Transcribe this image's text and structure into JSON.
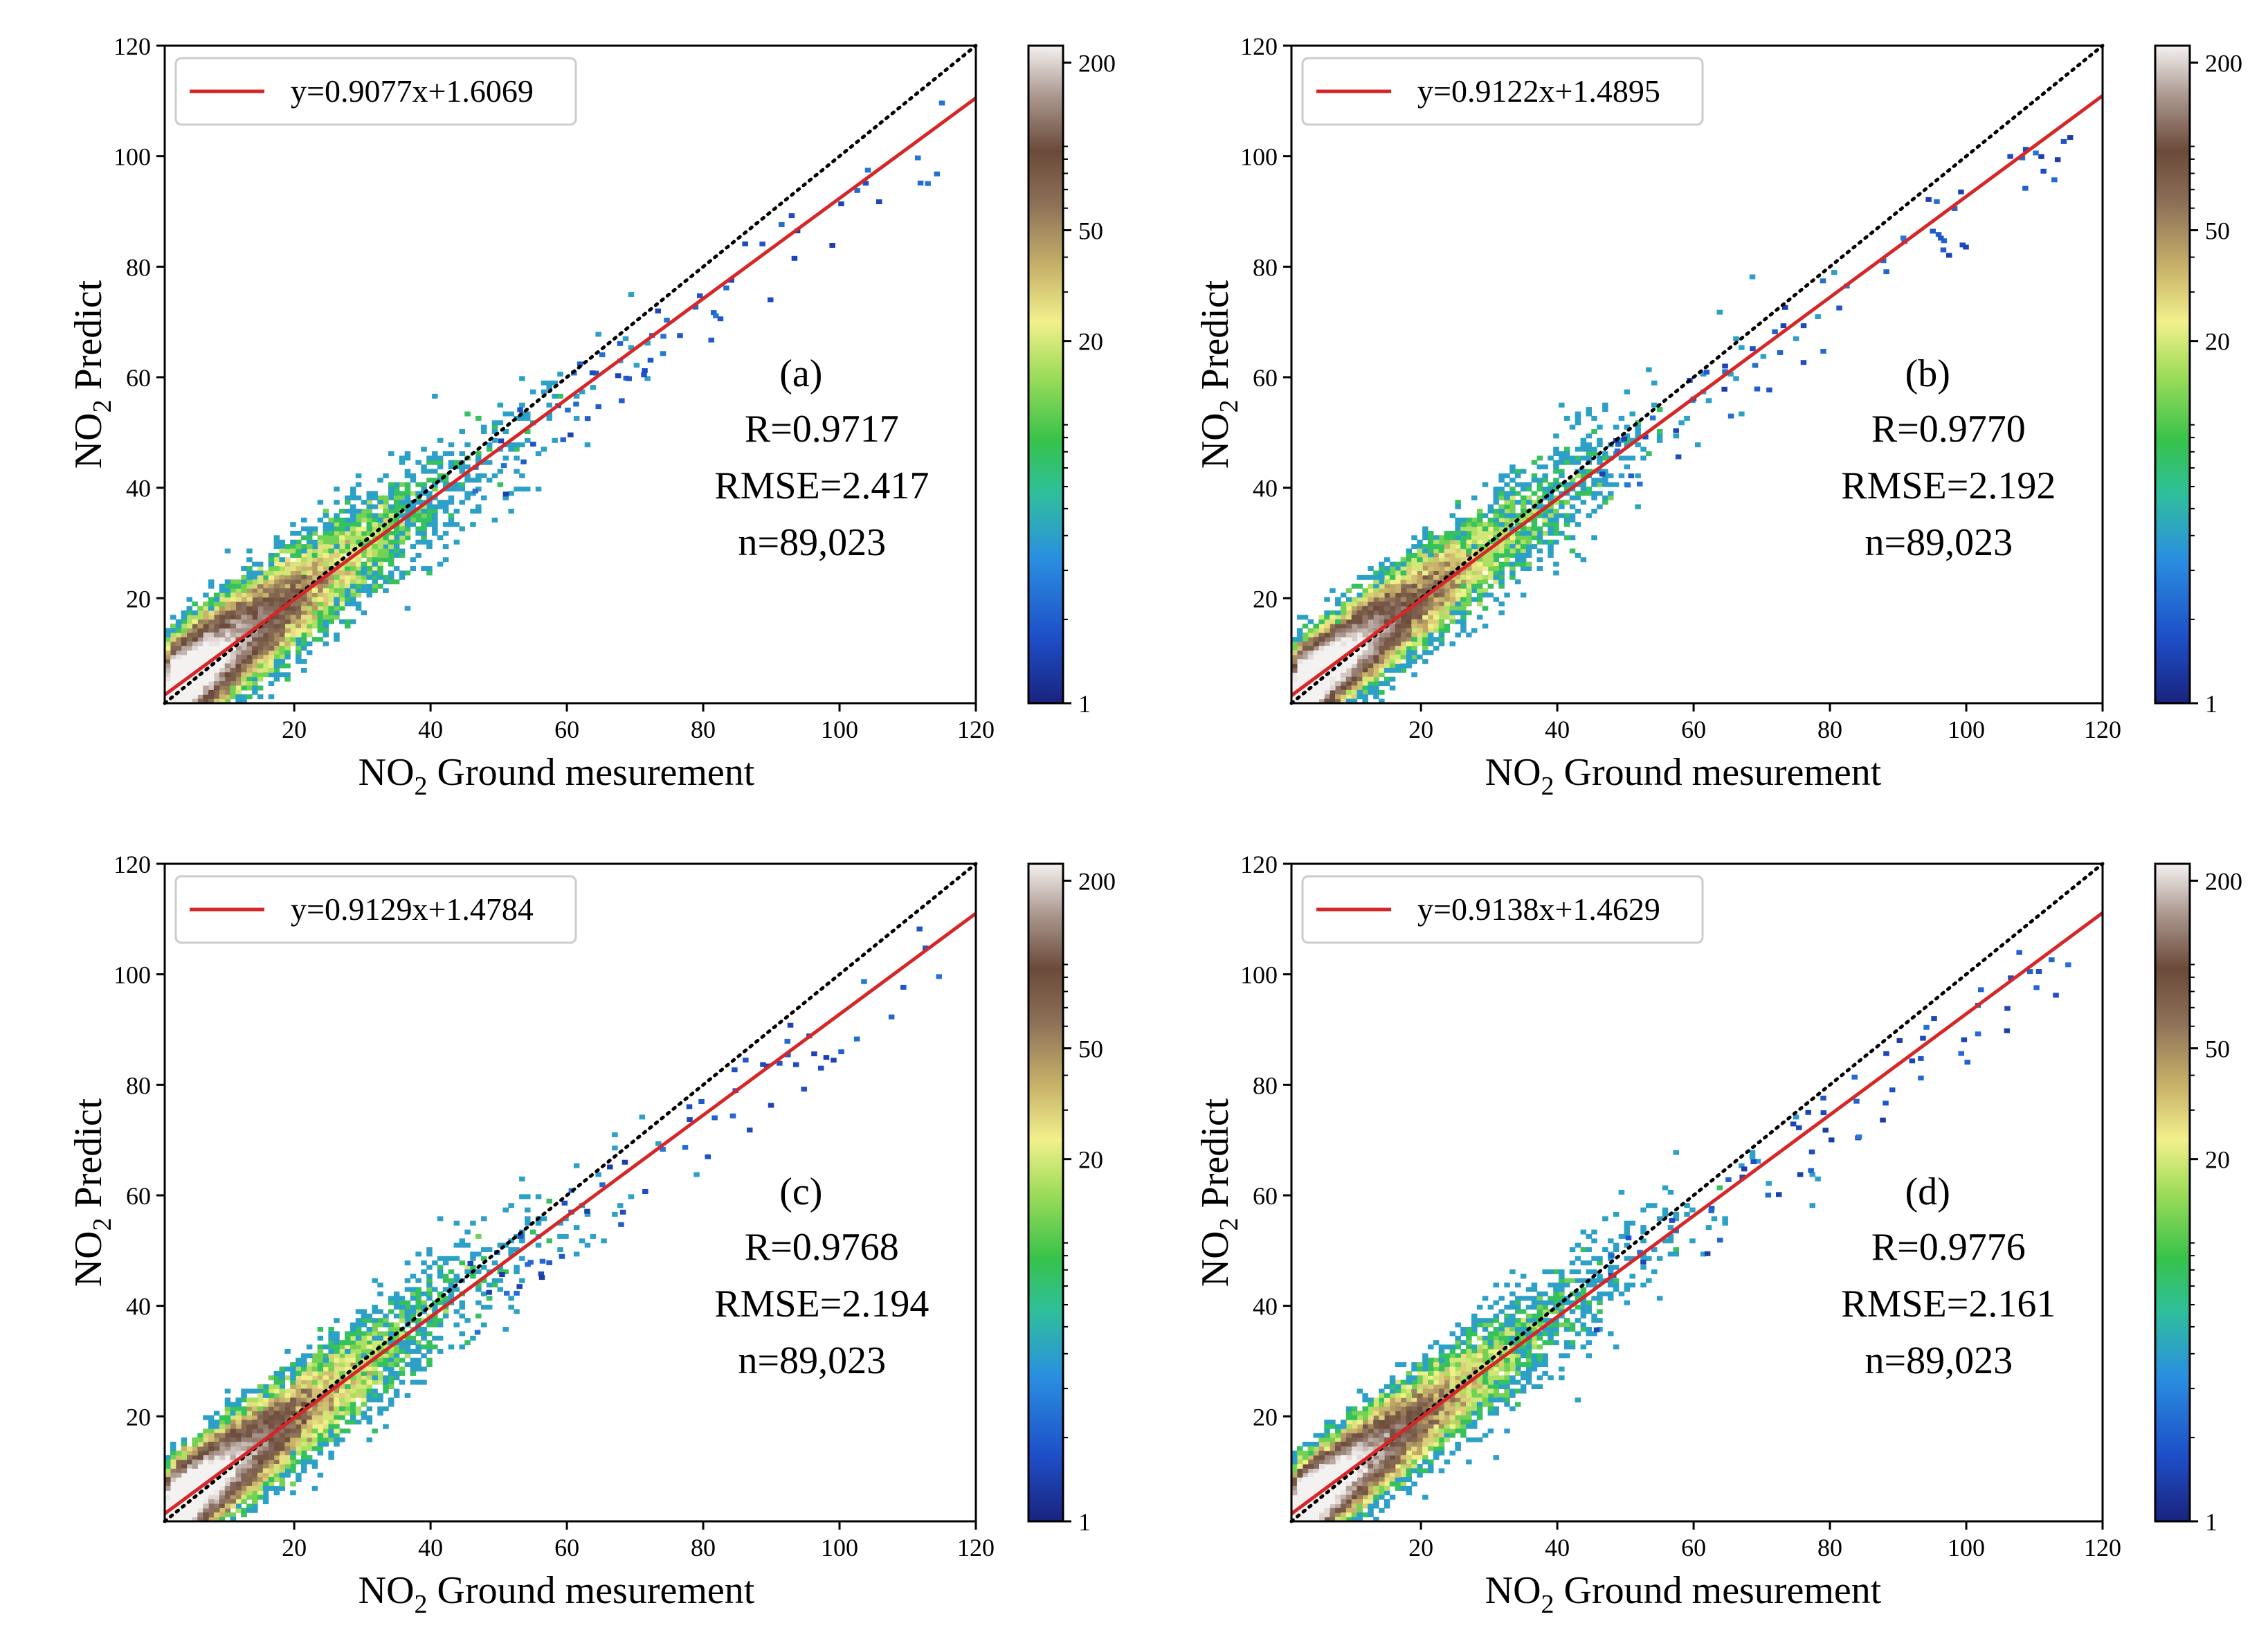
{
  "chart_data": [
    {
      "type": "heatmap",
      "panel_label": "(a)",
      "fit_equation": "y=0.9077x+1.6069",
      "slope": 0.9077,
      "intercept": 1.6069,
      "stats": {
        "r": "R=0.9717",
        "rmse": "RMSE=2.417",
        "n": "n=89,023"
      },
      "spread": 3.4,
      "xlabel_main": "NO",
      "xlabel_sub": "2",
      "xlabel_rest": " Ground mesurement",
      "ylabel_main": "NO",
      "ylabel_sub": "2",
      "ylabel_rest": " Predict",
      "xlim": [
        1,
        120
      ],
      "ylim": [
        1,
        120
      ],
      "xticks": [
        "20",
        "40",
        "60",
        "80",
        "100",
        "120"
      ],
      "yticks": [
        "20",
        "40",
        "60",
        "80",
        "100",
        "120"
      ],
      "colorbar": {
        "scale": "log",
        "range": [
          1,
          230
        ],
        "ticks": [
          "1",
          "20",
          "50",
          "200"
        ]
      },
      "reference_line": "1:1 dotted black",
      "legend_position": "top-left"
    },
    {
      "type": "heatmap",
      "panel_label": "(b)",
      "fit_equation": "y=0.9122x+1.4895",
      "slope": 0.9122,
      "intercept": 1.4895,
      "stats": {
        "r": "R=0.9770",
        "rmse": "RMSE=2.192",
        "n": "n=89,023"
      },
      "spread": 3.0,
      "xlabel_main": "NO",
      "xlabel_sub": "2",
      "xlabel_rest": " Ground mesurement",
      "ylabel_main": "NO",
      "ylabel_sub": "2",
      "ylabel_rest": " Predict",
      "xlim": [
        1,
        120
      ],
      "ylim": [
        1,
        120
      ],
      "xticks": [
        "20",
        "40",
        "60",
        "80",
        "100",
        "120"
      ],
      "yticks": [
        "20",
        "40",
        "60",
        "80",
        "100",
        "120"
      ],
      "colorbar": {
        "scale": "log",
        "range": [
          1,
          230
        ],
        "ticks": [
          "1",
          "20",
          "50",
          "200"
        ]
      },
      "reference_line": "1:1 dotted black",
      "legend_position": "top-left"
    },
    {
      "type": "heatmap",
      "panel_label": "(c)",
      "fit_equation": "y=0.9129x+1.4784",
      "slope": 0.9129,
      "intercept": 1.4784,
      "stats": {
        "r": "R=0.9768",
        "rmse": "RMSE=2.194",
        "n": "n=89,023"
      },
      "spread": 3.0,
      "xlabel_main": "NO",
      "xlabel_sub": "2",
      "xlabel_rest": " Ground mesurement",
      "ylabel_main": "NO",
      "ylabel_sub": "2",
      "ylabel_rest": " Predict",
      "xlim": [
        1,
        120
      ],
      "ylim": [
        1,
        120
      ],
      "xticks": [
        "20",
        "40",
        "60",
        "80",
        "100",
        "120"
      ],
      "yticks": [
        "20",
        "40",
        "60",
        "80",
        "100",
        "120"
      ],
      "colorbar": {
        "scale": "log",
        "range": [
          1,
          230
        ],
        "ticks": [
          "1",
          "20",
          "50",
          "200"
        ]
      },
      "reference_line": "1:1 dotted black",
      "legend_position": "top-left"
    },
    {
      "type": "heatmap",
      "panel_label": "(d)",
      "fit_equation": "y=0.9138x+1.4629",
      "slope": 0.9138,
      "intercept": 1.4629,
      "stats": {
        "r": "R=0.9776",
        "rmse": "RMSE=2.161",
        "n": "n=89,023"
      },
      "spread": 2.95,
      "xlabel_main": "NO",
      "xlabel_sub": "2",
      "xlabel_rest": " Ground mesurement",
      "ylabel_main": "NO",
      "ylabel_sub": "2",
      "ylabel_rest": " Predict",
      "xlim": [
        1,
        120
      ],
      "ylim": [
        1,
        120
      ],
      "xticks": [
        "20",
        "40",
        "60",
        "80",
        "100",
        "120"
      ],
      "yticks": [
        "20",
        "40",
        "60",
        "80",
        "100",
        "120"
      ],
      "colorbar": {
        "scale": "log",
        "range": [
          1,
          230
        ],
        "ticks": [
          "1",
          "20",
          "50",
          "200"
        ]
      },
      "reference_line": "1:1 dotted black",
      "legend_position": "top-left"
    }
  ],
  "colors": {
    "fit_line": "#d62728",
    "reference_line": "#000000",
    "colormap": [
      "#1a237e",
      "#1e4fc8",
      "#2a8fe0",
      "#2fbf9a",
      "#37c24a",
      "#9fdc5a",
      "#f2f08c",
      "#c9b46a",
      "#8c7058",
      "#6b4a3a",
      "#a8948a",
      "#f4f1f1"
    ]
  }
}
